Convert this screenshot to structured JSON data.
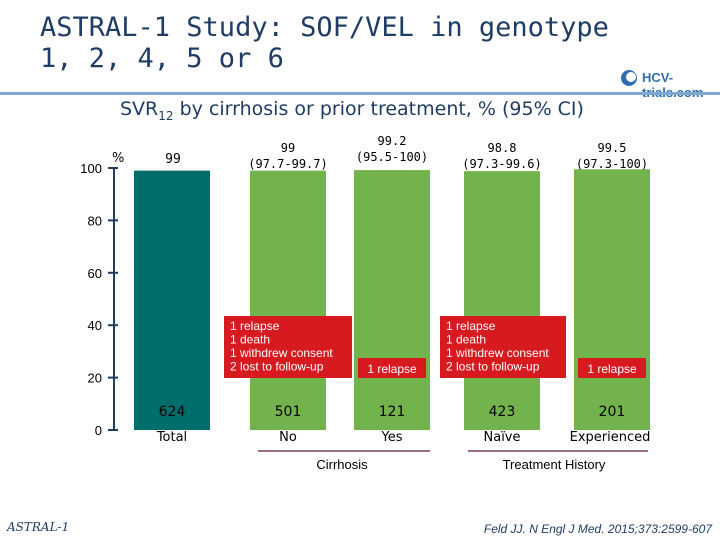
{
  "slide": {
    "title_line1": "ASTRAL-1 Study: SOF/VEL in genotype",
    "title_line2": "1, 2, 4, 5 or 6",
    "subtitle_main": "SVR",
    "subtitle_sub": "12",
    "subtitle_rest": " by cirrhosis or prior treatment, % (95% CI)",
    "logo_text": "HCV-trials.com",
    "footer_left": "ASTRAL-1",
    "footer_right": "Feld JJ. N Engl J Med. 2015;373:2599-607"
  },
  "colors": {
    "title": "#1f3c66",
    "total_bar": "#006e6a",
    "other_bars": "#73b34d",
    "failure_box": "#d61a1f",
    "axis": "#1f3c66",
    "text": "#000000"
  },
  "chart_data": {
    "type": "bar",
    "ylim": [
      0,
      100
    ],
    "yticks": [
      0,
      20,
      40,
      60,
      80,
      100
    ],
    "ylabel": "%",
    "categories": [
      "Total",
      "No",
      "Yes",
      "Naïve",
      "Experienced"
    ],
    "values": [
      99,
      99,
      99.2,
      98.8,
      99.5
    ],
    "value_labels": [
      "99",
      "99",
      "99.2",
      "98.8",
      "99.5"
    ],
    "ci_labels": [
      "",
      "(97.7-99.7)",
      "(95.5-100)",
      "(97.3-99.6)",
      "(97.3-100)"
    ],
    "n": [
      "624",
      "501",
      "121",
      "423",
      "201"
    ],
    "failures": [
      [],
      [
        "1 relapse",
        "1 death",
        "1 withdrew consent",
        "2 lost to follow-up"
      ],
      [
        "1 relapse"
      ],
      [
        "1 relapse",
        "1 death",
        "1 withdrew consent",
        "2 lost to follow-up"
      ],
      [
        "1 relapse"
      ]
    ],
    "groups": [
      {
        "label": "Cirrhosis",
        "categories": [
          "No",
          "Yes"
        ]
      },
      {
        "label": "Treatment History",
        "categories": [
          "Naïve",
          "Experienced"
        ]
      }
    ]
  }
}
